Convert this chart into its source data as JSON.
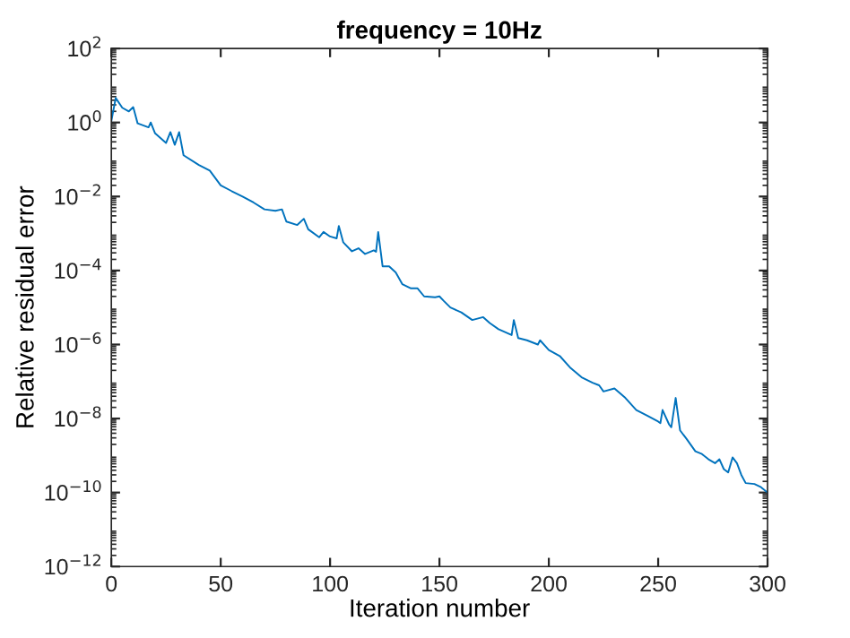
{
  "chart_data": {
    "type": "line",
    "title": "frequency = 10Hz",
    "xlabel": "Iteration number",
    "ylabel": "Relative residual error",
    "x": [
      0,
      2,
      5,
      8,
      10,
      12,
      17,
      18,
      20,
      25,
      27,
      29,
      31,
      33,
      40,
      45,
      50,
      55,
      60,
      65,
      70,
      75,
      78,
      80,
      85,
      88,
      90,
      95,
      97,
      100,
      103,
      104,
      106,
      110,
      113,
      116,
      120,
      121,
      122,
      124,
      127,
      130,
      133,
      137,
      140,
      143,
      148,
      150,
      152,
      155,
      160,
      165,
      170,
      173,
      177,
      183,
      184,
      186,
      190,
      195,
      196,
      200,
      205,
      210,
      215,
      220,
      223,
      225,
      230,
      235,
      240,
      245,
      250,
      251,
      252,
      255,
      256,
      258,
      260,
      263,
      267,
      270,
      273,
      276,
      278,
      280,
      282,
      284,
      286,
      288,
      290,
      294,
      297,
      300
    ],
    "series": [
      {
        "color": "#0072bd",
        "values": [
          1.1,
          4.6,
          2.5,
          2.0,
          2.6,
          0.95,
          0.74,
          1.0,
          0.51,
          0.28,
          0.55,
          0.25,
          0.55,
          0.13,
          0.071,
          0.05,
          0.02,
          0.014,
          0.01,
          0.0069,
          0.0045,
          0.0041,
          0.0045,
          0.0021,
          0.0017,
          0.0025,
          0.0013,
          0.00079,
          0.0011,
          0.00083,
          0.00074,
          0.0016,
          0.00058,
          0.00033,
          0.0004,
          0.00028,
          0.00035,
          0.00032,
          0.0011,
          0.00013,
          0.00013,
          8.9e-05,
          4.3e-05,
          3.3e-05,
          3.3e-05,
          2e-05,
          1.9e-05,
          2e-05,
          1.5e-05,
          1e-05,
          7.4e-06,
          4.6e-06,
          5.5e-06,
          3.8e-06,
          2.6e-06,
          1.8e-06,
          4.6e-06,
          1.5e-06,
          1.3e-06,
          1e-06,
          1.3e-06,
          7.1e-07,
          4.9e-07,
          2.3e-07,
          1.3e-07,
          9.3e-08,
          7.9e-08,
          5.4e-08,
          6.5e-08,
          3.6e-08,
          1.7e-08,
          1.2e-08,
          8.3e-09,
          7.5e-09,
          1.7e-08,
          6.9e-09,
          5.8e-09,
          3.6e-08,
          4.8e-09,
          2.8e-09,
          1.3e-09,
          1.1e-09,
          7.9e-10,
          6.2e-10,
          7.9e-10,
          4.3e-10,
          3.5e-10,
          8.9e-10,
          6.2e-10,
          3e-10,
          1.8e-10,
          1.7e-10,
          1.4e-10,
          1e-10
        ]
      }
    ],
    "log": "y",
    "grid": false,
    "legend": false,
    "marker": "none",
    "line_style": "solid",
    "xlim": [
      0,
      300
    ],
    "xticks": [
      0,
      50,
      100,
      150,
      200,
      250,
      300
    ],
    "ylim": [
      1e-12,
      100
    ],
    "yticks": [
      {
        "value": 1e-12,
        "label": "10$^{−12}$"
      },
      {
        "value": 1e-10,
        "label": "10$^{−10}$"
      },
      {
        "value": 1e-08,
        "label": "10$^{−8}$"
      },
      {
        "value": 1e-06,
        "label": "10$^{−6}$"
      },
      {
        "value": 0.0001,
        "label": "10$^{−4}$"
      },
      {
        "value": 0.01,
        "label": "10$^{−2}$"
      },
      {
        "value": 1,
        "label": "10$^{0}$"
      },
      {
        "value": 100,
        "label": "10$^{2}$"
      }
    ]
  }
}
